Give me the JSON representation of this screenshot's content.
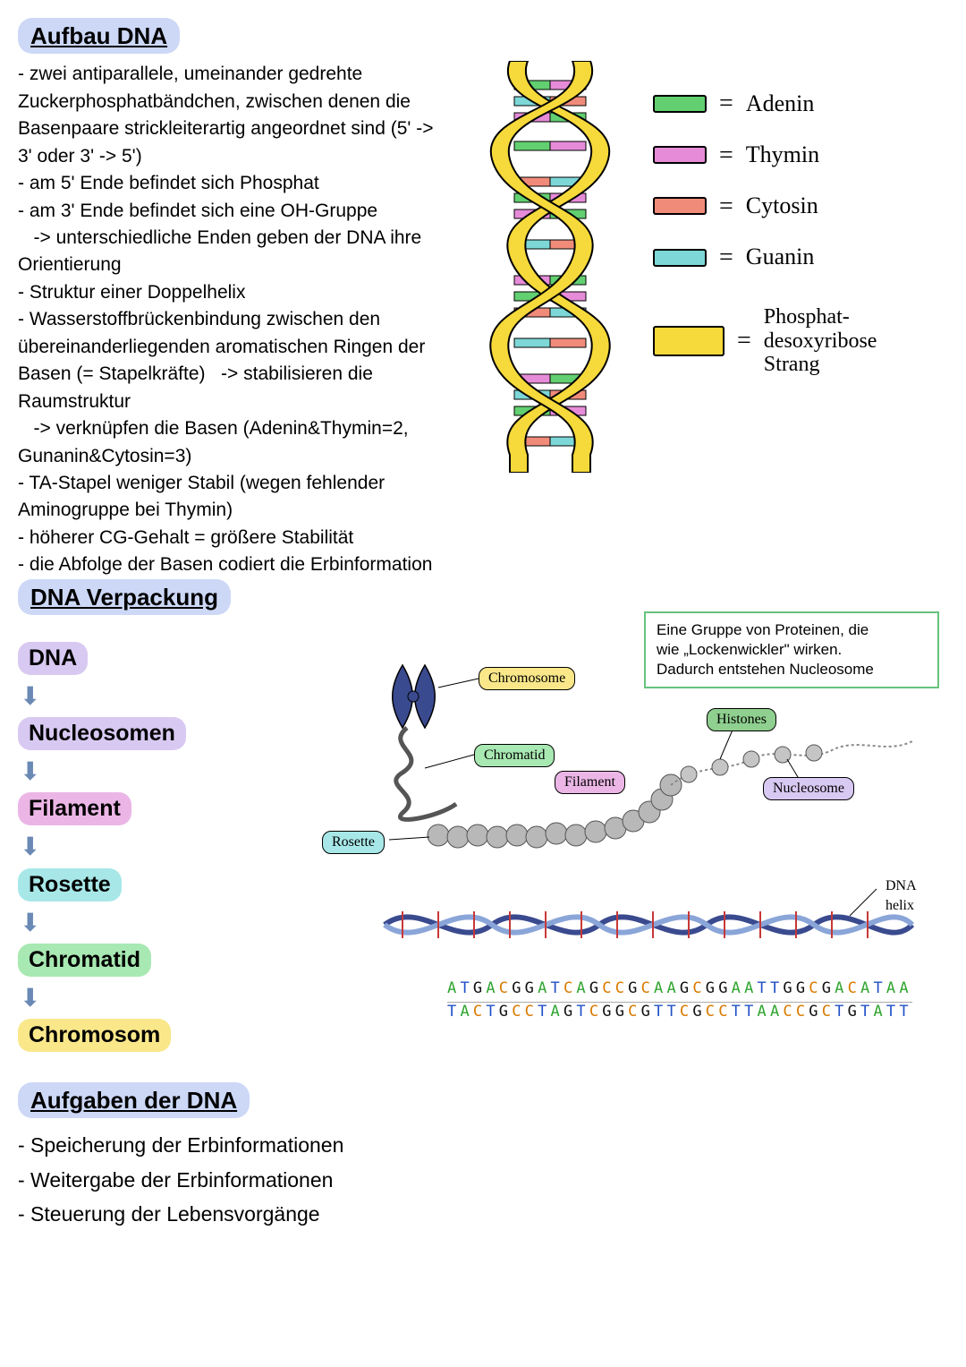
{
  "sections": {
    "aufbau_title": "Aufbau DNA",
    "verpackung_title": "DNA Verpackung",
    "aufgaben_title": "Aufgaben der DNA"
  },
  "aufbau_text": "- zwei antiparallele, umeinander gedrehte Zuckerphosphatbändchen, zwischen denen die Basenpaare strickleiterartig angeordnet sind (5' -> 3' oder 3' -> 5')\n- am 5' Ende befindet sich Phosphat\n- am 3' Ende befindet sich eine OH-Gruppe\n   -> unterschiedliche Enden geben der DNA ihre Orientierung\n- Struktur einer Doppelhelix\n- Wasserstoffbrückenbindung zwischen den übereinanderliegenden aromatischen Ringen der Basen (= Stapelkräfte)   -> stabilisieren die Raumstruktur\n   -> verknüpfen die Basen (Adenin&Thymin=2, Gunanin&Cytosin=3)\n- TA-Stapel weniger Stabil (wegen fehlender Aminogruppe bei Thymin)\n- höherer CG-Gehalt = größere Stabilität\n- die Abfolge der Basen codiert die Erbinformation",
  "helix": {
    "strand_color": "#f6d93a",
    "strand_stroke": "#000000",
    "rung_colors": {
      "adenin": "#62cf70",
      "thymin": "#e68bd8",
      "cytosin": "#f08b7a",
      "guanin": "#7dd7d7"
    }
  },
  "legend": [
    {
      "label": "Adenin",
      "color": "#62cf70"
    },
    {
      "label": "Thymin",
      "color": "#e68bd8"
    },
    {
      "label": "Cytosin",
      "color": "#f08b7a"
    },
    {
      "label": "Guanin",
      "color": "#7dd7d7"
    }
  ],
  "backbone_legend": {
    "color": "#f6d93a",
    "label1": "Phosphat-",
    "label2": "desoxyribose",
    "label3": "Strang"
  },
  "packaging_terms": [
    {
      "text": "DNA",
      "bg": "#d8c9f2"
    },
    {
      "text": "Nucleosomen",
      "bg": "#d8c9f2"
    },
    {
      "text": "Filament",
      "bg": "#ebb6e6"
    },
    {
      "text": "Rosette",
      "bg": "#a7e7e7"
    },
    {
      "text": "Chromatid",
      "bg": "#a8e8b2"
    },
    {
      "text": "Chromosom",
      "bg": "#f9e78a"
    }
  ],
  "arrow_glyph": "⬇",
  "pack_tags": {
    "chromosome": {
      "text": "Chromosome",
      "bg": "#f9e78a"
    },
    "chromatid": {
      "text": "Chromatid",
      "bg": "#a8e8b2"
    },
    "rosette": {
      "text": "Rosette",
      "bg": "#a7e7e7"
    },
    "filament": {
      "text": "Filament",
      "bg": "#ebb6e6"
    },
    "histones": {
      "text": "Histones",
      "bg": "#8fcf8f"
    },
    "nucleosome": {
      "text": "Nucleosome",
      "bg": "#d8c9f2"
    },
    "dna_helix": {
      "text": "DNA helix",
      "bg": "#ffffff"
    }
  },
  "callout": {
    "l1": "Eine Gruppe von Proteinen, die",
    "l2": "wie „Lockenwickler\" wirken.",
    "l3": "Dadurch entstehen Nucleosome"
  },
  "dna_sequence": {
    "top": "ATGACGGATCAGCCGCAAGCGGAATTGGCGACATAA",
    "bot": "TACTGCCTAGTCGGCGTTCGCCTTAACCGCTGTATT",
    "colors": {
      "A": "#30a530",
      "T": "#2050c7",
      "G": "#111111",
      "C": "#d97a00"
    }
  },
  "aufgaben": [
    "- Speicherung der Erbinformationen",
    "- Weitergabe der Erbinformationen",
    "- Steuerung der Lebensvorgänge"
  ],
  "heading_highlight_color": "#cdd8f7"
}
